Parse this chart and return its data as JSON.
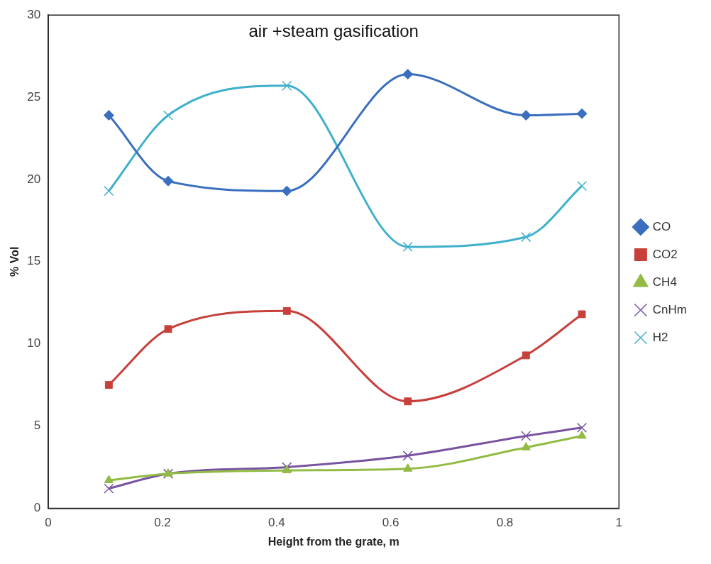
{
  "chart_data": {
    "type": "line",
    "title": "air +steam gasification",
    "xlabel": "Height from the grate, m",
    "ylabel": "% Vol",
    "xlim": [
      0,
      1
    ],
    "xticks": [
      0,
      0.2,
      0.4,
      0.6,
      0.8,
      1
    ],
    "ylim": [
      0,
      30
    ],
    "yticks": [
      0,
      5,
      10,
      15,
      20,
      25,
      30
    ],
    "grid": false,
    "legend": "right",
    "x": [
      0.106,
      0.21,
      0.418,
      0.63,
      0.837,
      0.935
    ],
    "series": [
      {
        "name": "CO",
        "color": "#3a6fbf",
        "marker": "diamond",
        "values": [
          23.9,
          19.9,
          19.3,
          26.4,
          23.9,
          24.0
        ]
      },
      {
        "name": "CO2",
        "color": "#c8403c",
        "marker": "square",
        "values": [
          7.5,
          10.9,
          12.0,
          6.5,
          9.3,
          11.8
        ]
      },
      {
        "name": "CH4",
        "color": "#92bb45",
        "marker": "triangle",
        "values": [
          1.7,
          2.1,
          2.3,
          2.4,
          3.7,
          4.4
        ]
      },
      {
        "name": "CnHm",
        "color": "#7753a0",
        "marker": "cross",
        "values": [
          1.2,
          2.1,
          2.5,
          3.2,
          4.4,
          4.9
        ]
      },
      {
        "name": "H2",
        "color": "#3fb0cb",
        "marker": "cross",
        "values": [
          19.3,
          23.9,
          25.7,
          15.9,
          16.5,
          19.6
        ]
      }
    ]
  }
}
